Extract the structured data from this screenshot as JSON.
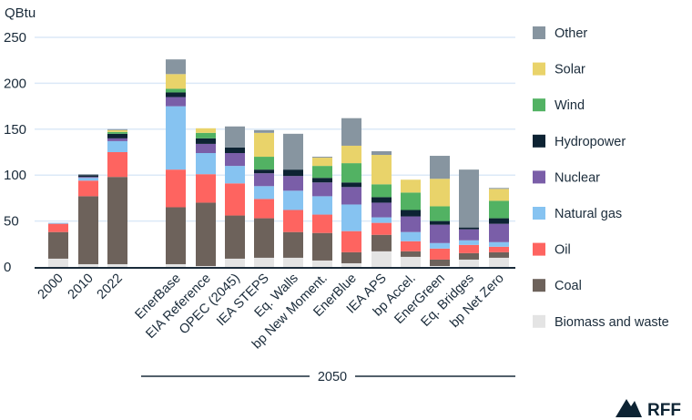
{
  "chart_data": {
    "type": "bar",
    "stacked": true,
    "ylabel": "QBtu",
    "ylim": [
      0,
      250
    ],
    "yticks": [
      0,
      50,
      100,
      150,
      200,
      250
    ],
    "grid": true,
    "legend_position": "right",
    "group_label": "2050",
    "categories": [
      "2000",
      "2010",
      "2022",
      "EnerBase",
      "EIA Reference",
      "OPEC (2045)",
      "IEA STEPS",
      "Eq. Walls",
      "bp New Moment.",
      "EnerBlue",
      "IEA APS",
      "bp Accel.",
      "EnerGreen",
      "Eq. Bridges",
      "bp Net Zero"
    ],
    "series": [
      {
        "name": "Biomass and waste",
        "color": "#e4e4e4",
        "values": [
          9,
          3,
          3,
          3,
          1,
          9,
          10,
          10,
          7,
          4,
          17,
          11,
          1,
          8,
          10
        ]
      },
      {
        "name": "Coal",
        "color": "#6d625b",
        "values": [
          29,
          74,
          95,
          62,
          69,
          47,
          43,
          28,
          30,
          12,
          18,
          6,
          7,
          7,
          6
        ]
      },
      {
        "name": "Oil",
        "color": "#fe6460",
        "values": [
          9,
          17,
          27,
          41,
          31,
          35,
          21,
          24,
          20,
          23,
          13,
          11,
          12,
          9,
          6
        ]
      },
      {
        "name": "Natural gas",
        "color": "#86c3f1",
        "values": [
          1,
          3,
          12,
          69,
          23,
          19,
          14,
          21,
          20,
          29,
          6,
          10,
          6,
          5,
          5
        ]
      },
      {
        "name": "Nuclear",
        "color": "#7a5ea8",
        "values": [
          0,
          1,
          3,
          10,
          10,
          14,
          14,
          16,
          15,
          19,
          16,
          17,
          20,
          12,
          20
        ]
      },
      {
        "name": "Hydropower",
        "color": "#0d2333",
        "values": [
          0,
          2,
          5,
          5,
          6,
          6,
          4,
          7,
          5,
          5,
          6,
          7,
          4,
          2,
          6
        ]
      },
      {
        "name": "Wind",
        "color": "#52b263",
        "values": [
          0,
          0,
          2,
          4,
          6,
          0,
          14,
          0,
          13,
          21,
          14,
          19,
          16,
          0,
          19
        ]
      },
      {
        "name": "Solar",
        "color": "#e9d36a",
        "values": [
          0,
          0,
          2,
          16,
          5,
          0,
          26,
          0,
          9,
          19,
          32,
          14,
          30,
          0,
          13
        ]
      },
      {
        "name": "Other",
        "color": "#8795a0",
        "values": [
          0,
          1,
          1,
          16,
          0,
          23,
          3,
          39,
          1,
          30,
          4,
          0,
          25,
          63,
          1
        ]
      }
    ]
  },
  "legend_order": [
    "Other",
    "Solar",
    "Wind",
    "Hydropower",
    "Nuclear",
    "Natural gas",
    "Oil",
    "Coal",
    "Biomass and waste"
  ],
  "logo": {
    "text": "RFF",
    "color": "#0d2333"
  }
}
